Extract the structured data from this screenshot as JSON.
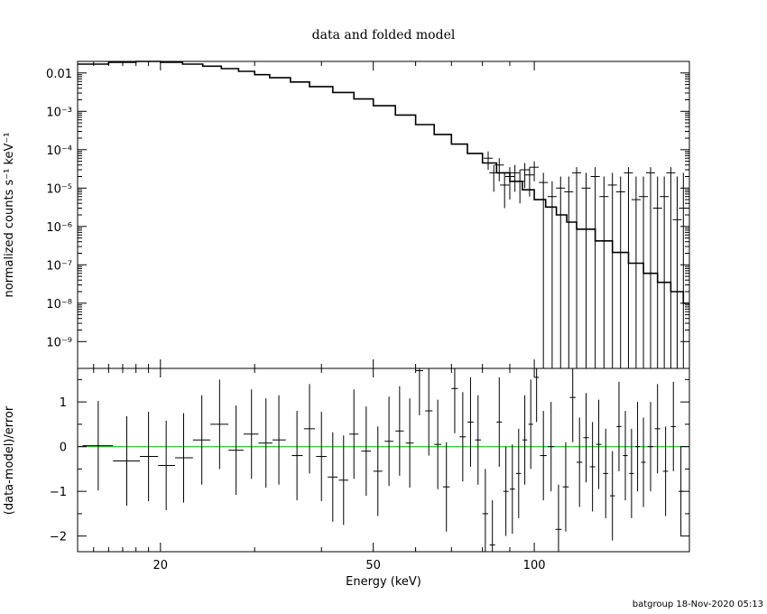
{
  "chart_data": [
    {
      "type": "step-line with error bars",
      "title": "data and folded model",
      "ylabel": "normalized counts s⁻¹ keV⁻¹",
      "xscale": "log",
      "yscale": "log",
      "xlim": [
        14,
        195
      ],
      "ylim": [
        2e-10,
        0.02
      ],
      "ytick_labels": [
        "0.01",
        "10⁻³",
        "10⁻⁴",
        "10⁻⁵",
        "10⁻⁶",
        "10⁻⁷",
        "10⁻⁸",
        "10⁻⁹"
      ],
      "ytick_values": [
        0.01,
        0.001,
        0.0001,
        1e-05,
        1e-06,
        1e-07,
        1e-08,
        1e-09
      ],
      "model": {
        "x": [
          14,
          16,
          18,
          20,
          22,
          24,
          26,
          28,
          30,
          32,
          35,
          38,
          42,
          46,
          50,
          55,
          60,
          65,
          70,
          75,
          80,
          85,
          90,
          95,
          100,
          105,
          110,
          115,
          120,
          130,
          140,
          150,
          160,
          170,
          180,
          190,
          195
        ],
        "y": [
          0.017,
          0.019,
          0.02,
          0.019,
          0.017,
          0.015,
          0.013,
          0.011,
          0.009,
          0.0075,
          0.0058,
          0.0044,
          0.0031,
          0.0021,
          0.0014,
          0.0008,
          0.00045,
          0.00025,
          0.00014,
          8e-05,
          4.5e-05,
          2.5e-05,
          1.5e-05,
          9e-06,
          5e-06,
          3.2e-06,
          2e-06,
          1.3e-06,
          8.5e-07,
          4.2e-07,
          2.1e-07,
          1.1e-07,
          6e-08,
          3.5e-08,
          2e-08,
          1e-08,
          8e-09
        ]
      },
      "data_points": {
        "x": [
          82,
          84,
          86,
          88,
          90,
          92,
          94,
          96,
          98,
          100,
          104,
          108,
          112,
          116,
          120,
          125,
          130,
          135,
          140,
          145,
          150,
          155,
          160,
          165,
          170,
          175,
          180,
          185,
          190
        ],
        "y": [
          6e-05,
          2.5e-05,
          4e-05,
          1.2e-05,
          2e-05,
          2.5e-05,
          1.5e-05,
          3e-05,
          2.2e-05,
          3.5e-05,
          1.4e-05,
          6e-06,
          1e-05,
          8e-06,
          2.5e-05,
          1e-05,
          2e-05,
          6e-06,
          1.2e-05,
          8e-06,
          2.5e-05,
          5e-06,
          6e-06,
          2.5e-05,
          3e-06,
          6e-06,
          2.5e-05,
          1.5e-06,
          3e-06
        ],
        "ylow": [
          3e-05,
          8e-06,
          1.5e-05,
          3e-06,
          5e-06,
          8e-06,
          4e-06,
          1e-05,
          6e-06,
          1.5e-05,
          1e-10,
          1e-10,
          1e-10,
          1e-10,
          1e-10,
          1e-10,
          1e-10,
          1e-10,
          1e-10,
          1e-10,
          1e-10,
          1e-10,
          1e-10,
          1e-10,
          1e-10,
          1e-10,
          1e-10,
          1e-10,
          1e-10
        ],
        "yhigh": [
          9e-05,
          4e-05,
          6e-05,
          2.5e-05,
          3.5e-05,
          4e-05,
          3e-05,
          4.5e-05,
          3.5e-05,
          5e-05,
          2.5e-05,
          1.5e-05,
          2e-05,
          2e-05,
          3.5e-05,
          2.5e-05,
          3.5e-05,
          2e-05,
          2.5e-05,
          2e-05,
          3.5e-05,
          2e-05,
          2e-05,
          3.5e-05,
          2e-05,
          2e-05,
          3.5e-05,
          2e-05,
          2.5e-05
        ]
      }
    },
    {
      "type": "scatter with error bars",
      "xlabel": "Energy (keV)",
      "ylabel": "(data-model)/error",
      "xscale": "log",
      "xlim": [
        14,
        195
      ],
      "ylim": [
        -2.35,
        1.75
      ],
      "xtick_labels": [
        "20",
        "50",
        "100"
      ],
      "xtick_values": [
        20,
        50,
        100
      ],
      "ytick_labels": [
        "1",
        "0",
        "−1",
        "−2"
      ],
      "ytick_values": [
        1,
        0,
        -1,
        -2
      ],
      "reference_line": {
        "y": 0,
        "color": "#2ecc40"
      },
      "points": [
        {
          "x": 15.3,
          "xlo": 14.3,
          "xhi": 16.3,
          "y": 0.02,
          "err": 1.0
        },
        {
          "x": 17.3,
          "xlo": 16.3,
          "xhi": 18.3,
          "y": -0.32,
          "err": 1.0
        },
        {
          "x": 19.0,
          "xlo": 18.3,
          "xhi": 19.8,
          "y": -0.22,
          "err": 1.0
        },
        {
          "x": 20.5,
          "xlo": 19.8,
          "xhi": 21.3,
          "y": -0.42,
          "err": 1.0
        },
        {
          "x": 22.1,
          "xlo": 21.3,
          "xhi": 23.0,
          "y": -0.25,
          "err": 1.0
        },
        {
          "x": 23.9,
          "xlo": 23.0,
          "xhi": 24.8,
          "y": 0.15,
          "err": 1.0
        },
        {
          "x": 25.8,
          "xlo": 24.8,
          "xhi": 26.8,
          "y": 0.5,
          "err": 1.0
        },
        {
          "x": 27.7,
          "xlo": 26.8,
          "xhi": 28.6,
          "y": -0.08,
          "err": 1.0
        },
        {
          "x": 29.6,
          "xlo": 28.6,
          "xhi": 30.5,
          "y": 0.28,
          "err": 1.0
        },
        {
          "x": 31.5,
          "xlo": 30.5,
          "xhi": 32.4,
          "y": 0.08,
          "err": 1.0
        },
        {
          "x": 33.3,
          "xlo": 32.4,
          "xhi": 34.3,
          "y": 0.15,
          "err": 1.0
        },
        {
          "x": 36.0,
          "xlo": 35.2,
          "xhi": 36.9,
          "y": -0.2,
          "err": 1.0
        },
        {
          "x": 38.0,
          "xlo": 37.1,
          "xhi": 38.9,
          "y": 0.4,
          "err": 1.0
        },
        {
          "x": 40.0,
          "xlo": 39.1,
          "xhi": 40.9,
          "y": -0.22,
          "err": 1.0
        },
        {
          "x": 42.0,
          "xlo": 41.1,
          "xhi": 42.9,
          "y": -0.68,
          "err": 1.0
        },
        {
          "x": 44.0,
          "xlo": 43.1,
          "xhi": 44.9,
          "y": -0.75,
          "err": 1.0
        },
        {
          "x": 46.0,
          "xlo": 45.1,
          "xhi": 46.9,
          "y": 0.28,
          "err": 1.0
        },
        {
          "x": 48.5,
          "xlo": 47.5,
          "xhi": 49.5,
          "y": -0.1,
          "err": 1.0
        },
        {
          "x": 51.0,
          "xlo": 50.0,
          "xhi": 52.0,
          "y": -0.55,
          "err": 1.0
        },
        {
          "x": 53.5,
          "xlo": 52.5,
          "xhi": 54.5,
          "y": 0.12,
          "err": 1.0
        },
        {
          "x": 56.0,
          "xlo": 55.0,
          "xhi": 57.0,
          "y": 0.35,
          "err": 1.0
        },
        {
          "x": 58.5,
          "xlo": 57.5,
          "xhi": 59.5,
          "y": 0.08,
          "err": 1.0
        },
        {
          "x": 61.0,
          "xlo": 60.0,
          "xhi": 62.0,
          "y": 1.7,
          "err": 1.0
        },
        {
          "x": 63.5,
          "xlo": 62.5,
          "xhi": 64.5,
          "y": 0.8,
          "err": 1.0
        },
        {
          "x": 66.0,
          "xlo": 65.0,
          "xhi": 67.0,
          "y": 0.05,
          "err": 1.0
        },
        {
          "x": 68.5,
          "xlo": 67.5,
          "xhi": 69.5,
          "y": -0.9,
          "err": 1.0
        },
        {
          "x": 71.0,
          "xlo": 70.0,
          "xhi": 72.0,
          "y": 1.3,
          "err": 1.0
        },
        {
          "x": 73.5,
          "xlo": 72.5,
          "xhi": 74.5,
          "y": 0.22,
          "err": 1.0
        },
        {
          "x": 76.0,
          "xlo": 75.0,
          "xhi": 77.0,
          "y": 0.55,
          "err": 1.0
        },
        {
          "x": 78.5,
          "xlo": 77.5,
          "xhi": 79.5,
          "y": 0.15,
          "err": 1.0
        },
        {
          "x": 81.0,
          "xlo": 80.0,
          "xhi": 82.0,
          "y": -1.5,
          "err": 1.0
        },
        {
          "x": 83.5,
          "xlo": 82.5,
          "xhi": 84.5,
          "y": -2.2,
          "err": 1.0
        },
        {
          "x": 86.0,
          "xlo": 85.0,
          "xhi": 87.0,
          "y": 0.55,
          "err": 1.0
        },
        {
          "x": 88.5,
          "xlo": 87.5,
          "xhi": 89.5,
          "y": -1.0,
          "err": 1.0
        },
        {
          "x": 91.0,
          "xlo": 90.0,
          "xhi": 92.0,
          "y": -0.95,
          "err": 1.0
        },
        {
          "x": 93.5,
          "xlo": 92.5,
          "xhi": 94.5,
          "y": -0.6,
          "err": 1.0
        },
        {
          "x": 96.0,
          "xlo": 95.0,
          "xhi": 97.0,
          "y": 0.15,
          "err": 1.0
        },
        {
          "x": 98.5,
          "xlo": 97.5,
          "xhi": 99.5,
          "y": 0.5,
          "err": 1.0
        },
        {
          "x": 101.0,
          "xlo": 100.0,
          "xhi": 102.0,
          "y": 1.55,
          "err": 1.0
        },
        {
          "x": 104.0,
          "xlo": 102.5,
          "xhi": 105.5,
          "y": -0.2,
          "err": 1.0
        },
        {
          "x": 107.5,
          "xlo": 106.0,
          "xhi": 109.0,
          "y": 0.0,
          "err": 1.0
        },
        {
          "x": 111.0,
          "xlo": 109.5,
          "xhi": 112.5,
          "y": -1.85,
          "err": 1.0
        },
        {
          "x": 114.5,
          "xlo": 113.0,
          "xhi": 116.0,
          "y": -0.9,
          "err": 1.0
        },
        {
          "x": 118.0,
          "xlo": 116.5,
          "xhi": 119.5,
          "y": 1.1,
          "err": 1.0
        },
        {
          "x": 121.5,
          "xlo": 120.0,
          "xhi": 123.0,
          "y": -0.35,
          "err": 1.0
        },
        {
          "x": 125.0,
          "xlo": 123.5,
          "xhi": 126.5,
          "y": 0.2,
          "err": 1.0
        },
        {
          "x": 128.5,
          "xlo": 127.0,
          "xhi": 130.0,
          "y": -0.45,
          "err": 1.0
        },
        {
          "x": 132.0,
          "xlo": 130.5,
          "xhi": 133.5,
          "y": 0.05,
          "err": 1.0
        },
        {
          "x": 136.0,
          "xlo": 134.5,
          "xhi": 137.5,
          "y": -0.6,
          "err": 1.0
        },
        {
          "x": 140.0,
          "xlo": 138.5,
          "xhi": 141.5,
          "y": -1.1,
          "err": 1.0
        },
        {
          "x": 144.0,
          "xlo": 142.5,
          "xhi": 145.5,
          "y": 0.45,
          "err": 1.0
        },
        {
          "x": 148.0,
          "xlo": 146.5,
          "xhi": 149.5,
          "y": -0.2,
          "err": 1.0
        },
        {
          "x": 152.0,
          "xlo": 150.5,
          "xhi": 153.5,
          "y": -0.6,
          "err": 1.0
        },
        {
          "x": 156.0,
          "xlo": 154.5,
          "xhi": 157.5,
          "y": 0.0,
          "err": 1.0
        },
        {
          "x": 160.0,
          "xlo": 158.5,
          "xhi": 161.5,
          "y": -0.35,
          "err": 1.0
        },
        {
          "x": 165.0,
          "xlo": 163.0,
          "xhi": 167.0,
          "y": 0.0,
          "err": 1.0
        },
        {
          "x": 170.0,
          "xlo": 168.0,
          "xhi": 172.0,
          "y": 0.4,
          "err": 1.0
        },
        {
          "x": 176.0,
          "xlo": 174.0,
          "xhi": 178.0,
          "y": -0.55,
          "err": 1.0
        },
        {
          "x": 182.0,
          "xlo": 180.0,
          "xhi": 184.0,
          "y": 0.45,
          "err": 1.0
        },
        {
          "x": 188.0,
          "xlo": 186.0,
          "xhi": 190.0,
          "y": -1.0,
          "err": 1.0
        }
      ]
    }
  ],
  "footer": "batgroup 18-Nov-2020 05:13"
}
